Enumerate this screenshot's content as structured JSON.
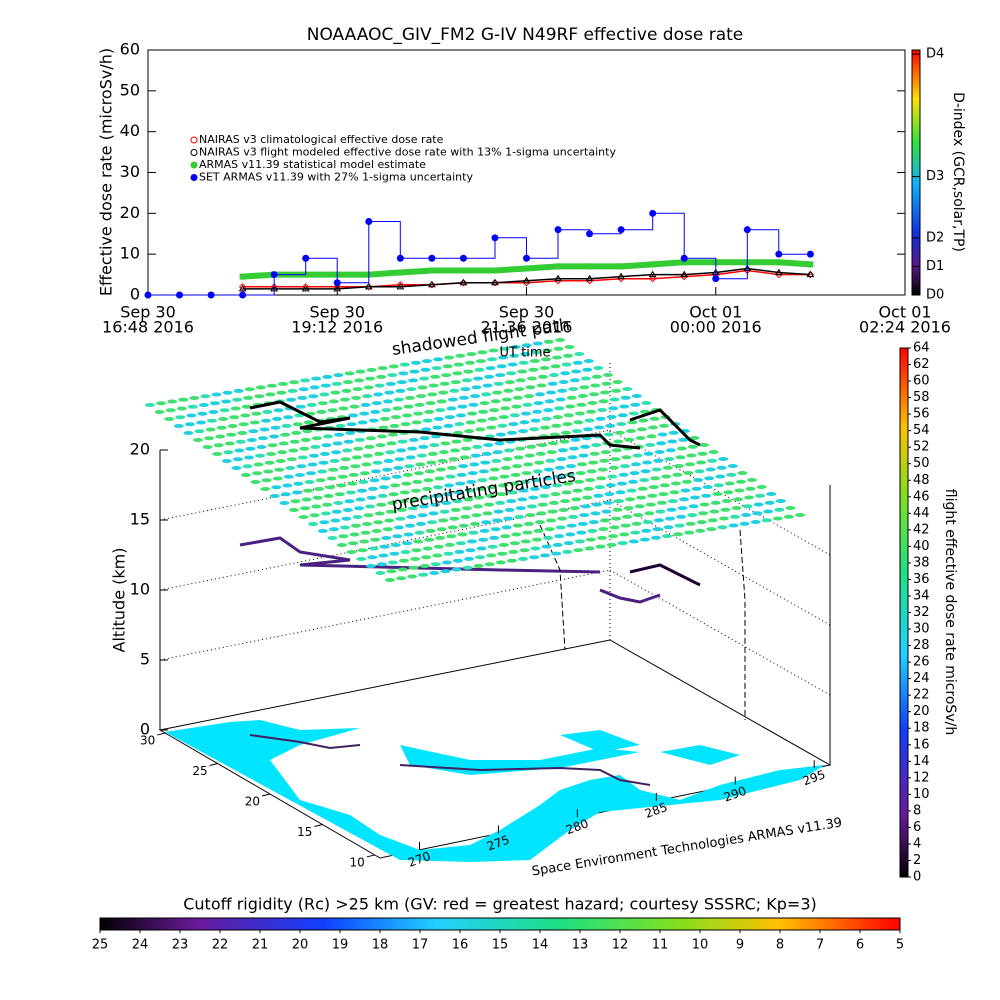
{
  "chart_data": [
    {
      "type": "line",
      "title": "NOAAAOC_GIV_FM2 G-IV   N49RF  effective dose rate",
      "y_label": "Effective dose rate (microSv/h)",
      "x_label": "UT time",
      "x": [
        16.8,
        17.2,
        17.6,
        18.0,
        18.4,
        18.8,
        19.2,
        19.6,
        20.0,
        20.4,
        20.8,
        21.2,
        21.6,
        22.0,
        22.4,
        22.8,
        23.2,
        23.6,
        24.0,
        24.4,
        24.8,
        25.2
      ],
      "xlim": [
        16.8,
        26.4
      ],
      "xticks": [
        {
          "value": 16.8,
          "label": [
            "Sep 30",
            "16:48 2016"
          ]
        },
        {
          "value": 19.2,
          "label": [
            "Sep 30",
            "19:12 2016"
          ]
        },
        {
          "value": 21.6,
          "label": [
            "Sep 30",
            "21:36 2016"
          ]
        },
        {
          "value": 24.0,
          "label": [
            "Oct 01",
            "00:00 2016"
          ]
        },
        {
          "value": 26.4,
          "label": [
            "Oct 01",
            "02:24 2016"
          ]
        }
      ],
      "ylim": [
        0,
        60
      ],
      "yticks": [
        0,
        10,
        20,
        30,
        40,
        50,
        60
      ],
      "y2_label": "D-index (GCR,solar,TP)",
      "y2lim": [
        0,
        60
      ],
      "y2ticks": [
        {
          "value": 0,
          "label": "D0"
        },
        {
          "value": 7,
          "label": "D1"
        },
        {
          "value": 14,
          "label": "D2"
        },
        {
          "value": 29,
          "label": "D3"
        },
        {
          "value": 59,
          "label": "D4"
        }
      ],
      "series": [
        {
          "name": "NAIRAS v3 climatological effective dose rate",
          "color": "#ff0000",
          "values": [
            null,
            null,
            null,
            2,
            2,
            2,
            2,
            2,
            2.5,
            2.5,
            3,
            3,
            3,
            3.5,
            3.5,
            4,
            4,
            4.5,
            5,
            6,
            5,
            5
          ]
        },
        {
          "name": "NAIRAS v3 flight modeled effective dose rate with 13% 1-sigma uncertainty",
          "color": "#000000",
          "values": [
            null,
            null,
            null,
            1.5,
            1.5,
            1.5,
            1.5,
            2,
            2,
            2.5,
            3,
            3,
            3.5,
            4,
            4,
            4.5,
            5,
            5,
            5.5,
            6.5,
            5.5,
            5
          ]
        },
        {
          "name": "ARMAS v11.39 statistical model estimate",
          "color": "#33cc33",
          "values": [
            null,
            null,
            null,
            4.5,
            5,
            5,
            5,
            5,
            5.5,
            6,
            6,
            6,
            6.5,
            7,
            7,
            7,
            7.5,
            8,
            8,
            8,
            8,
            7.5
          ]
        },
        {
          "name": "SET ARMAS v11.39 with 27% 1-sigma uncertainty",
          "color": "#0000ff",
          "values": [
            0,
            0,
            0,
            0,
            5,
            9,
            3,
            18,
            9,
            9,
            9,
            14,
            9,
            16,
            15,
            16,
            20,
            9,
            4,
            16,
            10,
            10
          ]
        }
      ]
    },
    {
      "type": "map3d",
      "z_label": "Altitude (km)",
      "zlim": [
        0,
        20
      ],
      "zticks": [
        0,
        5,
        10,
        15,
        20
      ],
      "latlim": [
        30.5,
        9.5
      ],
      "latticks": [
        30,
        25,
        20,
        15,
        10
      ],
      "lonlim": [
        267.5,
        296
      ],
      "lonticks": [
        270,
        275,
        280,
        285,
        290,
        295
      ],
      "annotations": [
        "shadowed flight path",
        "precipitating particles"
      ],
      "credit": "Space Environment Technologies ARMAS v11.39"
    },
    {
      "type": "colorbar",
      "label": "flight effective dose rate microSv/h",
      "lim": [
        0,
        64
      ],
      "ticks": [
        0,
        2,
        4,
        6,
        8,
        10,
        12,
        14,
        16,
        18,
        20,
        22,
        24,
        26,
        28,
        30,
        32,
        34,
        36,
        38,
        40,
        42,
        44,
        46,
        48,
        50,
        52,
        54,
        56,
        58,
        60,
        62,
        64
      ]
    },
    {
      "type": "colorbar",
      "label": "Cutoff rigidity (Rc) >25 km (GV: red = greatest hazard; courtesy SSSRC; Kp=3)",
      "lim": [
        25,
        5
      ],
      "ticks": [
        25,
        24,
        23,
        22,
        21,
        20,
        19,
        18,
        17,
        16,
        15,
        14,
        13,
        12,
        11,
        10,
        9,
        8,
        7,
        6,
        5
      ]
    }
  ]
}
